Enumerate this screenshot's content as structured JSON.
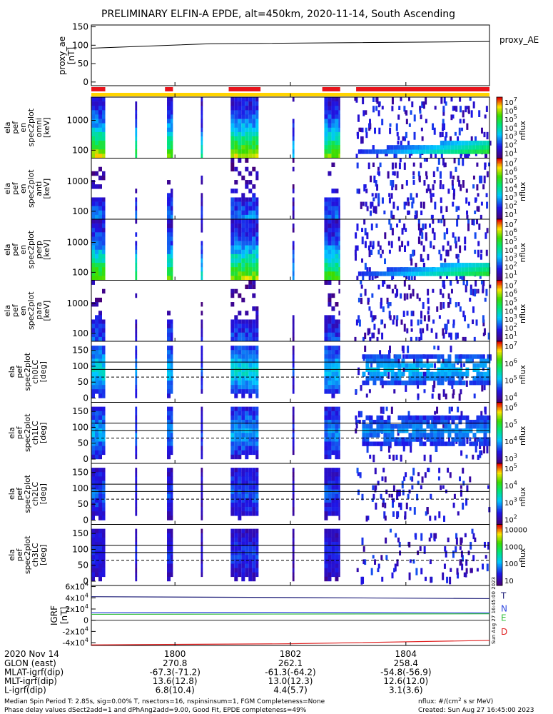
{
  "title": "PRELIMINARY ELFIN-A EPDE, alt=450km, 2020-11-14, South Ascending",
  "colors": {
    "red_bar": "#e8141c",
    "yellow_bar": "#ffd400",
    "total_field": "#1e1e78",
    "north_field": "#3048e0",
    "east_field": "#38c040",
    "down_field": "#e02020"
  },
  "chart_data": {
    "type": "spectrogram-stack",
    "time_axis": {
      "tick_labels": [
        "1800",
        "1802",
        "1804"
      ],
      "date_label": "2020 Nov 14",
      "rows": [
        {
          "label": "GLON (east)",
          "values": [
            "270.8",
            "262.1",
            "258.4"
          ]
        },
        {
          "label": "MLAT-igrf(dip)",
          "values": [
            "-67.3(-71.2)",
            "-61.3(-64.2)",
            "-54.8(-56.9)"
          ]
        },
        {
          "label": "MLT-igrf(dip)",
          "values": [
            "13.6(12.8)",
            "13.0(12.3)",
            "12.6(12.0)"
          ]
        },
        {
          "label": "L-igrf(dip)",
          "values": [
            "6.8(10.4)",
            "4.4(5.7)",
            "3.1(3.6)"
          ]
        }
      ]
    },
    "proxy_ae": {
      "ylabel": "proxy_ae\n[nT]",
      "ylabel_lines": [
        "proxy_ae",
        "[nT]"
      ],
      "legend": "proxy_AE",
      "yticks": [
        "150",
        "100",
        "50",
        "0"
      ],
      "ylim": [
        -10,
        155
      ],
      "line_x": [
        0,
        1
      ],
      "line_y": [
        92,
        110
      ]
    },
    "red_segments_frac": [
      [
        0.0,
        0.035
      ],
      [
        0.185,
        0.205
      ],
      [
        0.345,
        0.425
      ],
      [
        0.58,
        0.625
      ],
      [
        0.665,
        1.0
      ]
    ],
    "panels": [
      {
        "ylabel_lines": [
          "ela",
          "pef",
          "en",
          "spec2plot",
          "omni",
          "[keV]"
        ],
        "yticks": [
          "1000",
          "100"
        ],
        "cbar_ticks": [
          "10^7",
          "10^6",
          "10^5",
          "10^4",
          "10^3",
          "10^2",
          "10^1"
        ],
        "cbar_label": "nflux",
        "kind": "energy",
        "base": 1.0
      },
      {
        "ylabel_lines": [
          "ela",
          "pef",
          "en",
          "spec2plot",
          "anti",
          "[keV]"
        ],
        "yticks": [
          "1000",
          "100"
        ],
        "cbar_ticks": [
          "10^7",
          "10^6",
          "10^5",
          "10^4",
          "10^3",
          "10^2",
          "10^1"
        ],
        "cbar_label": "nflux",
        "kind": "energy",
        "base": 0.35
      },
      {
        "ylabel_lines": [
          "ela",
          "pef",
          "en",
          "spec2plot",
          "perp",
          "[keV]"
        ],
        "yticks": [
          "1000",
          "100"
        ],
        "cbar_ticks": [
          "10^7",
          "10^6",
          "10^5",
          "10^4",
          "10^3",
          "10^2",
          "10^1"
        ],
        "cbar_label": "nflux",
        "kind": "energy",
        "base": 0.95
      },
      {
        "ylabel_lines": [
          "ela",
          "pef",
          "en",
          "spec2plot",
          "para",
          "[keV]"
        ],
        "yticks": [
          "1000",
          "100"
        ],
        "cbar_ticks": [
          "10^7",
          "10^6",
          "10^5",
          "10^4",
          "10^3",
          "10^2",
          "10^1"
        ],
        "cbar_label": "nflux",
        "kind": "energy",
        "base": 0.3
      },
      {
        "ylabel_lines": [
          "ela",
          "pef",
          "spec2plot",
          "ch0LC",
          "[deg]"
        ],
        "yticks": [
          "150",
          "100",
          "50",
          "0"
        ],
        "cbar_ticks": [
          "10^7",
          "10^6",
          "10^5",
          "10^4"
        ],
        "cbar_label": "nflux",
        "kind": "pa",
        "base": 1.0
      },
      {
        "ylabel_lines": [
          "ela",
          "pef",
          "spec2plot",
          "ch1LC",
          "[deg]"
        ],
        "yticks": [
          "150",
          "100",
          "50",
          "0"
        ],
        "cbar_ticks": [
          "10^6",
          "10^5",
          "10^4",
          "10^3"
        ],
        "cbar_label": "nflux",
        "kind": "pa",
        "base": 0.8
      },
      {
        "ylabel_lines": [
          "ela",
          "pef",
          "spec2plot",
          "ch2LC",
          "[deg]"
        ],
        "yticks": [
          "150",
          "100",
          "50",
          "0"
        ],
        "cbar_ticks": [
          "10^5",
          "10^4",
          "10^3",
          "10^2"
        ],
        "cbar_label": "nflux",
        "kind": "pa",
        "base": 0.6
      },
      {
        "ylabel_lines": [
          "ela",
          "pef",
          "spec2plot",
          "ch3LC",
          "[deg]"
        ],
        "yticks": [
          "150",
          "100",
          "50",
          "0"
        ],
        "cbar_ticks": [
          "10000",
          "1000",
          "100",
          "10"
        ],
        "cbar_label": "nflux",
        "kind": "pa",
        "base": 0.5
      }
    ],
    "igrf": {
      "ylabel_lines": [
        "IGRF",
        "[nT]"
      ],
      "yticks": [
        "6x10^4",
        "4x10^4",
        "2x10^4",
        "0",
        "-2x10^4",
        "-4x10^4"
      ],
      "ylim": [
        -45000,
        62000
      ],
      "series": [
        {
          "name": "T",
          "values": [
            42000,
            40500,
            38500
          ]
        },
        {
          "name": "N",
          "values": [
            13500,
            14000,
            13000
          ]
        },
        {
          "name": "E",
          "values": [
            10500,
            11000,
            11500
          ]
        },
        {
          "name": "D",
          "values": [
            -44000,
            -42000,
            -36000
          ]
        }
      ]
    }
  },
  "footer": {
    "line1": "Median Spin Period T: 2.85s, sig=0.00% T, nsectors=16, nspinsinsum=1, FGM Completeness=None",
    "line2": "Phase delay values dSect2add=1 and dPhAng2add=9.00, Good Fit, EPDE completeness=49%",
    "units": "nflux: #/(cm^2 s sr MeV)",
    "created": "Created: Sun Aug 27 16:45:00 2023",
    "side_stamp": "Sun Aug 27 16:45:00 2023"
  }
}
